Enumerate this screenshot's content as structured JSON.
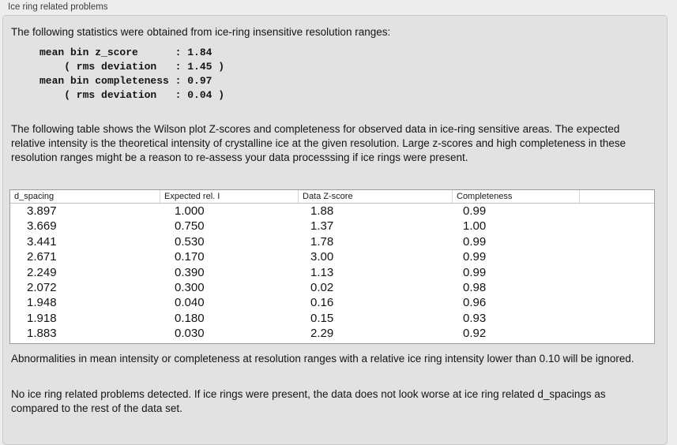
{
  "panel": {
    "title": "Ice ring related problems"
  },
  "intro": {
    "text": "The following statistics were obtained from ice-ring insensitive resolution ranges:"
  },
  "stats_block": {
    "lines": [
      "mean bin z_score      : 1.84",
      "    ( rms deviation   : 1.45 )",
      "mean bin completeness : 0.97",
      "    ( rms deviation   : 0.04 )"
    ]
  },
  "description": {
    "text": "The following table shows the Wilson plot Z-scores and completeness for observed data in ice-ring sensitive areas. The expected relative intensity is the theoretical intensity of crystalline ice at the given resolution. Large z-scores and high completeness in these resolution ranges might be a reason to re-assess your data processsing if ice rings were present."
  },
  "table": {
    "columns": [
      "d_spacing",
      "Expected rel. I",
      "Data Z-score",
      "Completeness"
    ],
    "rows": [
      [
        "3.897",
        "1.000",
        "1.88",
        "0.99"
      ],
      [
        "3.669",
        "0.750",
        "1.37",
        "1.00"
      ],
      [
        "3.441",
        "0.530",
        "1.78",
        "0.99"
      ],
      [
        "2.671",
        "0.170",
        "3.00",
        "0.99"
      ],
      [
        "2.249",
        "0.390",
        "1.13",
        "0.99"
      ],
      [
        "2.072",
        "0.300",
        "0.02",
        "0.98"
      ],
      [
        "1.948",
        "0.040",
        "0.16",
        "0.96"
      ],
      [
        "1.918",
        "0.180",
        "0.15",
        "0.93"
      ],
      [
        "1.883",
        "0.030",
        "2.29",
        "0.92"
      ]
    ]
  },
  "footer": {
    "note1": "Abnormalities in mean intensity or completeness at resolution ranges with a relative ice ring intensity lower than 0.10 will be ignored.",
    "note2": "No ice ring related problems detected. If ice rings were present, the data does not look worse at ice ring related d_spacings as compared to the rest of the data set."
  },
  "colors": {
    "window_bg": "#ededed",
    "panel_bg": "#e2e2e2",
    "table_bg": "#ffffff",
    "table_border": "#9c9c9c",
    "text": "#141414"
  }
}
